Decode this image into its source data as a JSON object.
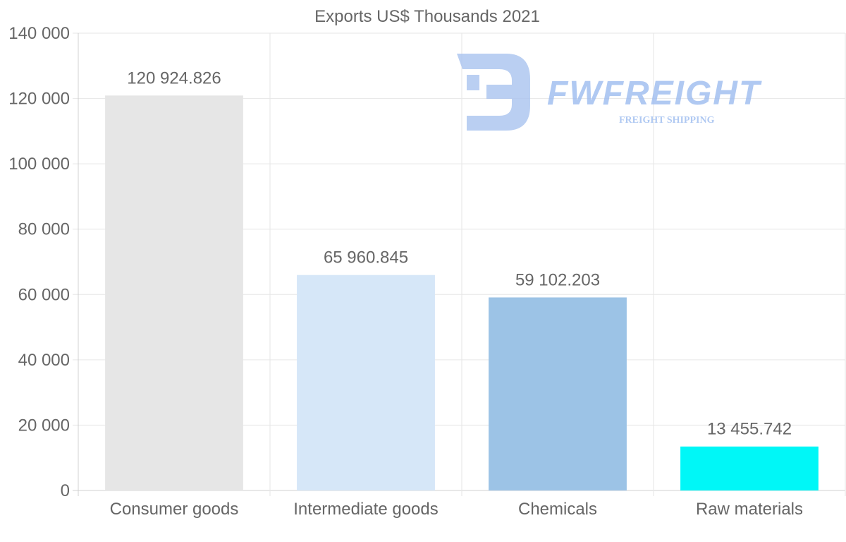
{
  "chart_data": {
    "type": "bar",
    "title": "Exports US$ Thousands 2021",
    "categories": [
      "Consumer goods",
      "Intermediate goods",
      "Chemicals",
      "Raw materials"
    ],
    "values": [
      120924.826,
      65960.845,
      59102.203,
      13455.742
    ],
    "value_labels": [
      "120 924.826",
      "65 960.845",
      "59 102.203",
      "13 455.742"
    ],
    "bar_colors": [
      "#e6e6e6",
      "#d6e7f8",
      "#9cc3e6",
      "#00f7f7"
    ],
    "xlabel": "",
    "ylabel": "",
    "ylim": [
      0,
      140000
    ],
    "yticks": [
      0,
      20000,
      40000,
      60000,
      80000,
      100000,
      120000,
      140000
    ],
    "ytick_labels": [
      "0",
      "20 000",
      "40 000",
      "60 000",
      "80 000",
      "100 000",
      "120 000",
      "140 000"
    ],
    "grid": true,
    "legend": "none"
  },
  "watermark": {
    "brand": "FWFREIGHT",
    "tagline": "FREIGHT SHIPPING",
    "logo_icon": "fw-logo-icon",
    "color": "#9dbcef"
  }
}
